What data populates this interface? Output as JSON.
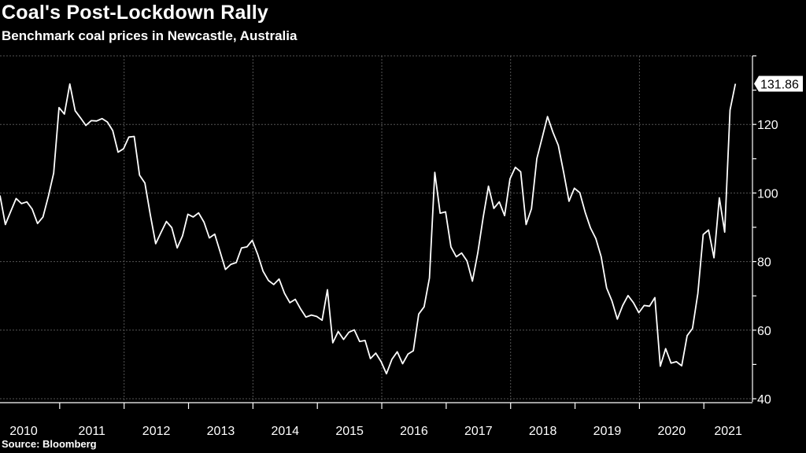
{
  "chart_data": {
    "type": "line",
    "title": "Coal's Post-Lockdown Rally",
    "subtitle": "Benchmark coal prices in Newcastle, Australia",
    "source": "Source: Bloomberg",
    "xlabel": "",
    "ylabel": "",
    "x_tick_labels": [
      "2010",
      "2011",
      "2012",
      "2013",
      "2014",
      "2015",
      "2016",
      "2017",
      "2018",
      "2019",
      "2020",
      "2021"
    ],
    "y_ticks": [
      40,
      60,
      80,
      100,
      120
    ],
    "ylim": [
      40,
      140
    ],
    "grid": true,
    "y_axis_side": "right",
    "last_value_label": "131.86",
    "colors": {
      "background": "#000000",
      "line": "#ffffff",
      "grid": "#555555"
    },
    "x_start": "2010-01",
    "x_frequency": "monthly",
    "values": [
      99.3,
      90.8,
      94.6,
      98.4,
      96.9,
      97.4,
      95.3,
      91.1,
      93.0,
      99.0,
      105.8,
      124.9,
      123.0,
      131.8,
      124.0,
      121.9,
      119.7,
      121.1,
      121.0,
      121.7,
      120.7,
      118.2,
      111.9,
      112.9,
      116.3,
      116.5,
      105.2,
      102.9,
      93.6,
      85.2,
      88.5,
      91.7,
      89.9,
      84.0,
      87.5,
      93.8,
      93.0,
      94.2,
      91.5,
      86.9,
      88.0,
      82.9,
      77.7,
      79.2,
      79.7,
      84.0,
      84.3,
      86.2,
      82.1,
      77.2,
      74.5,
      73.3,
      74.9,
      70.7,
      68.0,
      69.0,
      66.2,
      63.8,
      64.4,
      64.0,
      62.9,
      71.8,
      56.3,
      59.6,
      57.3,
      59.4,
      60.1,
      56.7,
      57.0,
      51.7,
      53.3,
      50.8,
      47.3,
      51.5,
      53.7,
      50.2,
      53.0,
      54.0,
      64.7,
      66.8,
      75.2,
      106.0,
      94.1,
      94.5,
      84.3,
      81.4,
      82.5,
      80.2,
      74.3,
      82.5,
      92.8,
      102.0,
      95.5,
      97.4,
      93.4,
      104.1,
      107.5,
      106.2,
      90.8,
      95.4,
      110.0,
      116.1,
      122.3,
      117.7,
      113.9,
      106.0,
      97.6,
      101.4,
      100.1,
      94.4,
      89.8,
      86.7,
      81.4,
      72.3,
      68.5,
      63.2,
      67.2,
      70.1,
      68.0,
      65.1,
      67.2,
      67.0,
      69.5,
      49.5,
      54.6,
      50.4,
      50.8,
      49.6,
      58.4,
      60.5,
      70.7,
      87.9,
      89.2,
      81.1,
      98.6,
      88.6,
      124.2,
      131.86
    ]
  }
}
